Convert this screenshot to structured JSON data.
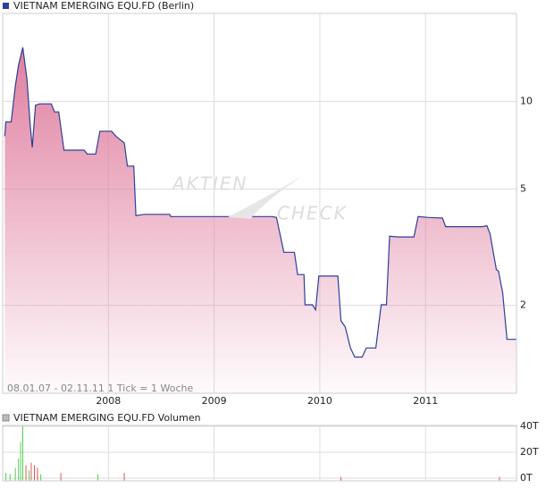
{
  "chart_data": [
    {
      "type": "area",
      "title": "VIETNAM EMERGING EQU.FD (Berlin)",
      "note": "08.01.07 - 02.11.11   1 Tick = 1 Woche",
      "watermark": [
        "AKTIEN",
        "CHECK"
      ],
      "x": [
        2007.02,
        2007.03,
        2007.08,
        2007.12,
        2007.15,
        2007.19,
        2007.23,
        2007.26,
        2007.28,
        2007.31,
        2007.35,
        2007.46,
        2007.49,
        2007.53,
        2007.58,
        2007.77,
        2007.8,
        2007.88,
        2007.92,
        2008.03,
        2008.07,
        2008.15,
        2008.18,
        2008.24,
        2008.26,
        2008.34,
        2008.58,
        2008.59,
        2009.55,
        2009.59,
        2009.66,
        2009.76,
        2009.79,
        2009.85,
        2009.86,
        2009.93,
        2009.96,
        2009.99,
        2010.17,
        2010.2,
        2010.24,
        2010.29,
        2010.33,
        2010.4,
        2010.44,
        2010.53,
        2010.58,
        2010.63,
        2010.66,
        2010.74,
        2010.89,
        2010.93,
        2011.03,
        2011.16,
        2011.19,
        2011.54,
        2011.58,
        2011.61,
        2011.67,
        2011.69,
        2011.73,
        2011.77,
        2011.86
      ],
      "values": [
        7.6,
        8.5,
        8.5,
        11.3,
        13.3,
        15.3,
        11.9,
        8.3,
        6.95,
        9.7,
        9.8,
        9.8,
        9.2,
        9.2,
        6.8,
        6.8,
        6.6,
        6.6,
        7.9,
        7.9,
        7.6,
        7.2,
        6.0,
        6.0,
        4.06,
        4.1,
        4.1,
        4.03,
        4.03,
        4.0,
        3.04,
        3.04,
        2.55,
        2.55,
        2.01,
        2.01,
        1.93,
        2.52,
        2.52,
        1.77,
        1.69,
        1.43,
        1.33,
        1.33,
        1.43,
        1.43,
        2.01,
        2.01,
        3.45,
        3.43,
        3.43,
        4.03,
        4.0,
        3.98,
        3.72,
        3.72,
        3.75,
        3.52,
        2.65,
        2.62,
        2.2,
        1.53,
        1.53
      ],
      "color": "#2b3f9a",
      "fill": "#e07fa0",
      "xlim": [
        2007.0,
        2011.86
      ],
      "xticks": [
        2008,
        2009,
        2010,
        2011
      ],
      "ylim": [
        1,
        20
      ],
      "yticks": [
        10,
        5,
        2
      ],
      "log_scale": true,
      "grid": true
    },
    {
      "type": "bar",
      "title": "VIETNAM EMERGING EQU.FD Volumen",
      "x": [
        2007.03,
        2007.07,
        2007.12,
        2007.15,
        2007.17,
        2007.19,
        2007.22,
        2007.25,
        2007.27,
        2007.3,
        2007.33,
        2007.36,
        2007.55,
        2007.9,
        2008.15,
        2010.2,
        2011.7
      ],
      "values": [
        4,
        3,
        8,
        15,
        28,
        40,
        10,
        6,
        12,
        10,
        8,
        3,
        4,
        3,
        4,
        1,
        1
      ],
      "colors": [
        "#55cc55",
        "#55cc55",
        "#55cc55",
        "#55cc55",
        "#55cc55",
        "#55cc55",
        "#e05555",
        "#55cc55",
        "#e05555",
        "#e05555",
        "#e05555",
        "#55cc55",
        "#e05555",
        "#55cc55",
        "#e05555",
        "#e05555",
        "#e05555"
      ],
      "xlim": [
        2007.0,
        2011.86
      ],
      "ylim": [
        0,
        40
      ],
      "yticks": [
        {
          "value": 40,
          "label": "40T"
        },
        {
          "value": 20,
          "label": "20T"
        },
        {
          "value": 0,
          "label": "0T"
        }
      ]
    }
  ]
}
